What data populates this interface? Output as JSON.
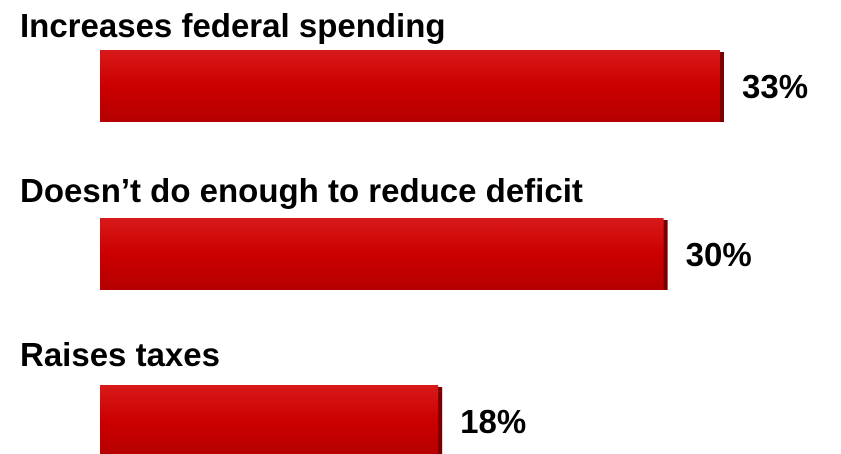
{
  "chart_data": {
    "type": "bar",
    "orientation": "horizontal",
    "categories": [
      "Increases federal spending",
      "Doesn’t do enough to reduce deficit",
      "Raises taxes"
    ],
    "values": [
      33,
      30,
      18
    ],
    "value_labels": [
      "33%",
      "30%",
      "18%"
    ],
    "unit": "%",
    "colors": {
      "bar": "#cc0000",
      "bar_shadow": "#7a0000",
      "text": "#000000"
    },
    "grid": false,
    "legend": "none"
  }
}
